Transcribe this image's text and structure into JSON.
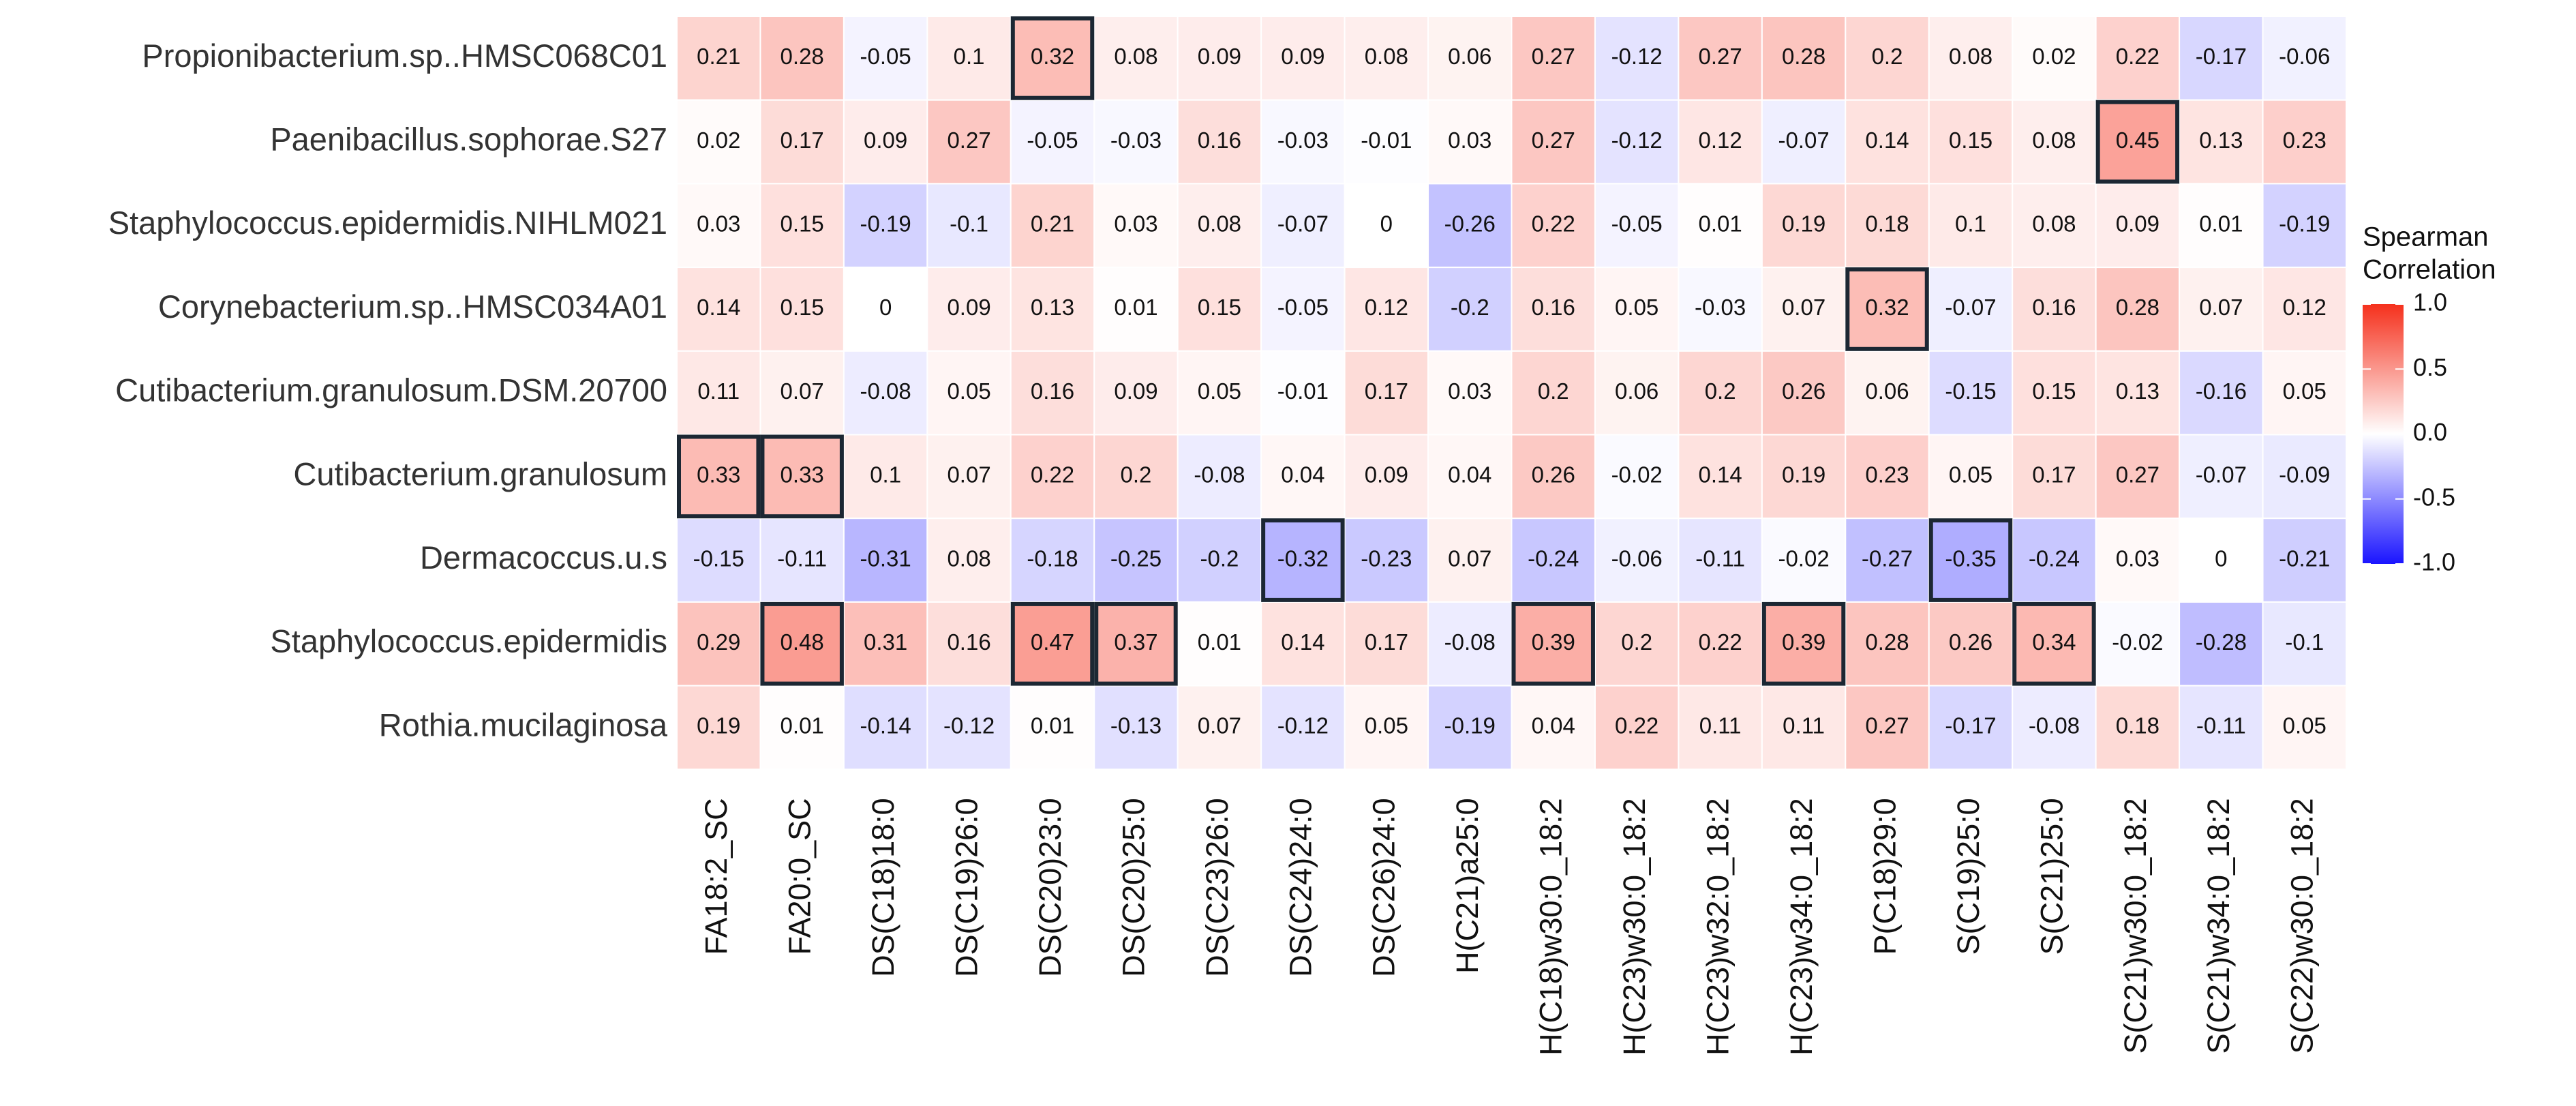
{
  "chart_data": {
    "type": "heatmap",
    "y_categories": [
      "Propionibacterium.sp..HMSC068C01",
      "Paenibacillus.sophorae.S27",
      "Staphylococcus.epidermidis.NIHLM021",
      "Corynebacterium.sp..HMSC034A01",
      "Cutibacterium.granulosum.DSM.20700",
      "Cutibacterium.granulosum",
      "Dermacoccus.u.s",
      "Staphylococcus.epidermidis",
      "Rothia.mucilaginosa"
    ],
    "x_categories": [
      "FA18:2_SC",
      "FA20:0_SC",
      "DS(C18)18:0",
      "DS(C19)26:0",
      "DS(C20)23:0",
      "DS(C20)25:0",
      "DS(C23)26:0",
      "DS(C24)24:0",
      "DS(C26)24:0",
      "H(C21)a25:0",
      "H(C18)w30:0_18:2",
      "H(C23)w30:0_18:2",
      "H(C23)w32:0_18:2",
      "H(C23)w34:0_18:2",
      "P(C18)29:0",
      "S(C19)25:0",
      "S(C21)25:0",
      "S(C21)w30:0_18:2",
      "S(C21)w34:0_18:2",
      "S(C22)w30:0_18:2"
    ],
    "values": [
      [
        0.21,
        0.28,
        -0.05,
        0.1,
        0.32,
        0.08,
        0.09,
        0.09,
        0.08,
        0.06,
        0.27,
        -0.12,
        0.27,
        0.28,
        0.2,
        0.08,
        0.02,
        0.22,
        -0.17,
        -0.06
      ],
      [
        0.02,
        0.17,
        0.09,
        0.27,
        -0.05,
        -0.03,
        0.16,
        -0.03,
        -0.01,
        0.03,
        0.27,
        -0.12,
        0.12,
        -0.07,
        0.14,
        0.15,
        0.08,
        0.45,
        0.13,
        0.23
      ],
      [
        0.03,
        0.15,
        -0.19,
        -0.1,
        0.21,
        0.03,
        0.08,
        -0.07,
        0,
        -0.26,
        0.22,
        -0.05,
        0.01,
        0.19,
        0.18,
        0.1,
        0.08,
        0.09,
        0.01,
        -0.19
      ],
      [
        0.14,
        0.15,
        0,
        0.09,
        0.13,
        0.01,
        0.15,
        -0.05,
        0.12,
        -0.2,
        0.16,
        0.05,
        -0.03,
        0.07,
        0.32,
        -0.07,
        0.16,
        0.28,
        0.07,
        0.12
      ],
      [
        0.11,
        0.07,
        -0.08,
        0.05,
        0.16,
        0.09,
        0.05,
        -0.01,
        0.17,
        0.03,
        0.2,
        0.06,
        0.2,
        0.26,
        0.06,
        -0.15,
        0.15,
        0.13,
        -0.16,
        0.05
      ],
      [
        0.33,
        0.33,
        0.1,
        0.07,
        0.22,
        0.2,
        -0.08,
        0.04,
        0.09,
        0.04,
        0.26,
        -0.02,
        0.14,
        0.19,
        0.23,
        0.05,
        0.17,
        0.27,
        -0.07,
        -0.09
      ],
      [
        -0.15,
        -0.11,
        -0.31,
        0.08,
        -0.18,
        -0.25,
        -0.2,
        -0.32,
        -0.23,
        0.07,
        -0.24,
        -0.06,
        -0.11,
        -0.02,
        -0.27,
        -0.35,
        -0.24,
        0.03,
        0,
        -0.21
      ],
      [
        0.29,
        0.48,
        0.31,
        0.16,
        0.47,
        0.37,
        0.01,
        0.14,
        0.17,
        -0.08,
        0.39,
        0.2,
        0.22,
        0.39,
        0.28,
        0.26,
        0.34,
        -0.02,
        -0.28,
        -0.1
      ],
      [
        0.19,
        0.01,
        -0.14,
        -0.12,
        0.01,
        -0.13,
        0.07,
        -0.12,
        0.05,
        -0.19,
        0.04,
        0.22,
        0.11,
        0.11,
        0.27,
        -0.17,
        -0.08,
        0.18,
        -0.11,
        0.05
      ]
    ],
    "highlighted": [
      [
        0,
        4
      ],
      [
        1,
        17
      ],
      [
        3,
        14
      ],
      [
        5,
        0
      ],
      [
        5,
        1
      ],
      [
        6,
        7
      ],
      [
        6,
        15
      ],
      [
        7,
        1
      ],
      [
        7,
        4
      ],
      [
        7,
        5
      ],
      [
        7,
        10
      ],
      [
        7,
        13
      ],
      [
        7,
        16
      ]
    ],
    "highlight_color": "#1c2733",
    "legend_title": [
      "Spearman",
      "Correlation"
    ],
    "zlim": [
      -1,
      1
    ],
    "zticks": [
      {
        "value": 1,
        "label": "1.0"
      },
      {
        "value": 0.5,
        "label": "0.5"
      },
      {
        "value": 0,
        "label": "0.0"
      },
      {
        "value": -0.5,
        "label": "-0.5"
      },
      {
        "value": -1,
        "label": "-1.0"
      }
    ],
    "colors": {
      "low": "#1a14ff",
      "mid": "#ffffff",
      "high": "#f5301c"
    }
  }
}
